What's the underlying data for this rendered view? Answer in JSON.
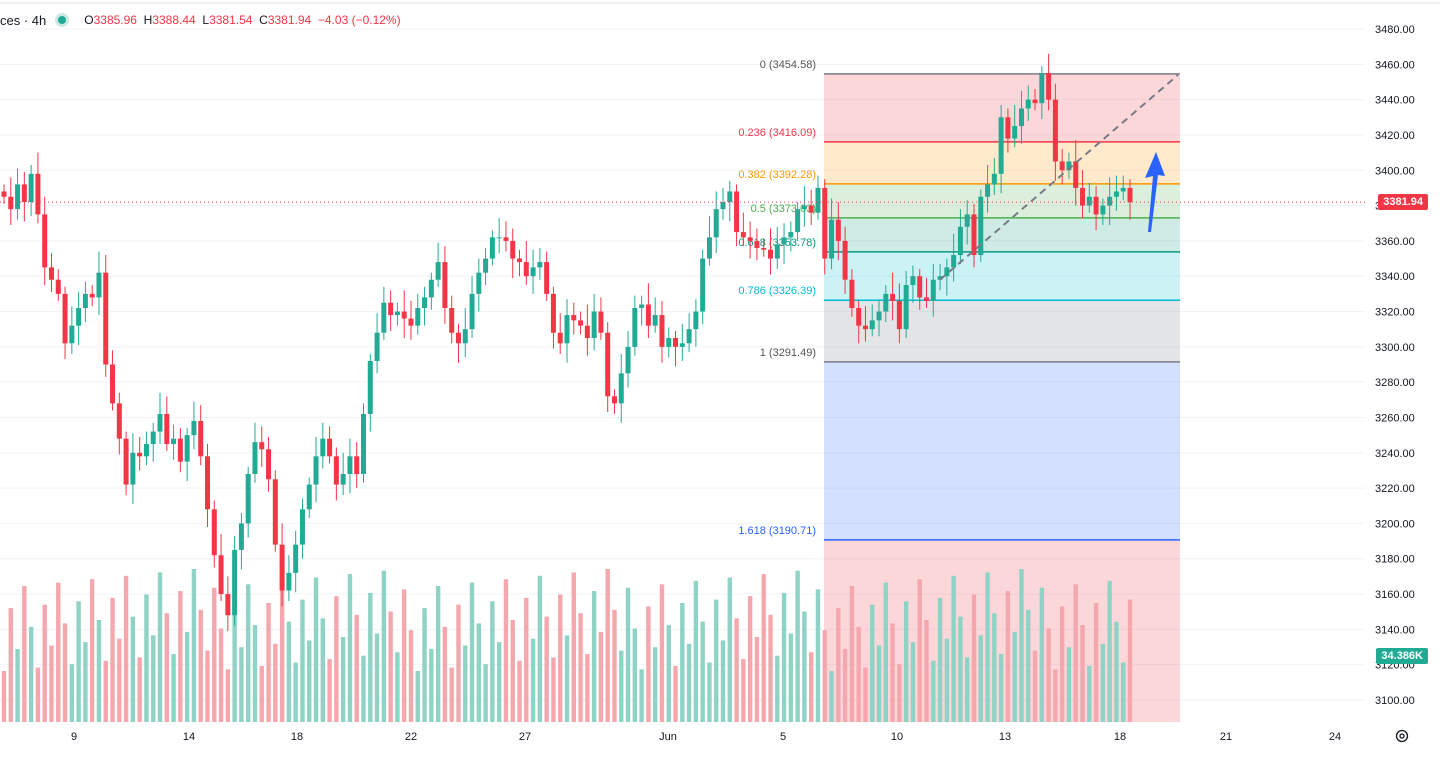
{
  "legend": {
    "symbol": "ces · 4h",
    "o_key": "O",
    "o": "3385.96",
    "h_key": "H",
    "h": "3388.44",
    "l_key": "L",
    "l": "3381.54",
    "c_key": "C",
    "c": "3381.94",
    "change": "−4.03 (−0.12%)"
  },
  "badges": {
    "last_price": "3381.94",
    "volume": "34.386K"
  },
  "colors": {
    "up": "#22ab94",
    "down": "#f23645",
    "up_vol": "#8fd3c6",
    "down_vol": "#f4a8ae",
    "arrow": "#2962ff"
  },
  "chart_data": {
    "type": "candlestick",
    "title": "",
    "timeframe": "4h",
    "y_axis": {
      "ticks": [
        3100,
        3120,
        3140,
        3160,
        3180,
        3200,
        3220,
        3240,
        3260,
        3280,
        3300,
        3320,
        3340,
        3360,
        3380,
        3400,
        3420,
        3440,
        3460,
        3480
      ],
      "range": [
        3090,
        3490
      ],
      "side": "right"
    },
    "x_axis": {
      "ticks": [
        "9",
        "14",
        "18",
        "22",
        "27",
        "Jun",
        "5",
        "10",
        "13",
        "18",
        "21",
        "24"
      ]
    },
    "last_price": 3381.94,
    "fibonacci": [
      {
        "ratio": "0",
        "price": 3454.58,
        "label": "0 (3454.58)"
      },
      {
        "ratio": "0.236",
        "price": 3416.09,
        "label": "0.236 (3416.09)"
      },
      {
        "ratio": "0.382",
        "price": 3392.28,
        "label": "0.382 (3392.28)"
      },
      {
        "ratio": "0.5",
        "price": 3373.03,
        "label": "0.5 (3373.03)"
      },
      {
        "ratio": "0.618",
        "price": 3353.78,
        "label": "0.618 (3353.78)"
      },
      {
        "ratio": "0.786",
        "price": 3326.39,
        "label": "0.786 (3326.39)"
      },
      {
        "ratio": "1",
        "price": 3291.49,
        "label": "1 (3291.49)"
      },
      {
        "ratio": "1.618",
        "price": 3190.71,
        "label": "1.618 (3190.71)"
      }
    ],
    "candles_close": [
      3385,
      3378,
      3392,
      3382,
      3398,
      3375,
      3345,
      3338,
      3330,
      3302,
      3312,
      3322,
      3330,
      3328,
      3342,
      3290,
      3268,
      3248,
      3222,
      3240,
      3238,
      3245,
      3252,
      3262,
      3245,
      3248,
      3235,
      3250,
      3258,
      3238,
      3208,
      3182,
      3160,
      3148,
      3185,
      3200,
      3228,
      3246,
      3242,
      3225,
      3188,
      3162,
      3172,
      3188,
      3208,
      3222,
      3238,
      3248,
      3238,
      3222,
      3228,
      3238,
      3228,
      3262,
      3292,
      3308,
      3325,
      3318,
      3320,
      3316,
      3312,
      3322,
      3328,
      3338,
      3348,
      3322,
      3308,
      3302,
      3310,
      3330,
      3342,
      3350,
      3362,
      3362,
      3360,
      3350,
      3348,
      3340,
      3345,
      3348,
      3330,
      3308,
      3302,
      3318,
      3315,
      3312,
      3305,
      3320,
      3308,
      3272,
      3268,
      3285,
      3300,
      3322,
      3324,
      3312,
      3318,
      3300,
      3305,
      3300,
      3302,
      3310,
      3320,
      3350,
      3362,
      3378,
      3382,
      3388,
      3365,
      3362,
      3360,
      3356,
      3355,
      3350,
      3358,
      3362,
      3365,
      3378,
      3380,
      3376,
      3390,
      3350,
      3372,
      3360,
      3338,
      3322,
      3312,
      3310,
      3315,
      3320,
      3330,
      3326,
      3310,
      3335,
      3340,
      3328,
      3326,
      3338,
      3340,
      3345,
      3352,
      3368,
      3375,
      3352,
      3385,
      3392,
      3398,
      3430,
      3418,
      3425,
      3435,
      3440,
      3438,
      3455,
      3440,
      3405,
      3400,
      3405,
      3390,
      3380,
      3385,
      3375,
      3380,
      3385,
      3388,
      3390,
      3381.94
    ],
    "volume_max": 160000
  },
  "annotations": {
    "arrow": "up",
    "trend_line": "dashed"
  }
}
